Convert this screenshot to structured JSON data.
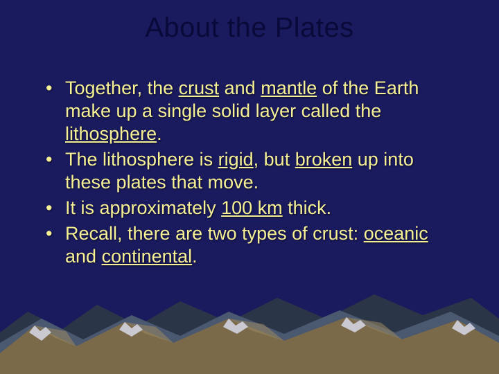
{
  "title": {
    "text": "About the Plates",
    "color": "#0a0a3a",
    "fontsize": 40
  },
  "body_text_color": "#f5f096",
  "body_fontsize": 27,
  "background_color": "#1a1a5e",
  "bullets": [
    {
      "segments": [
        {
          "t": "Together, the "
        },
        {
          "t": "crust",
          "u": true
        },
        {
          "t": " and "
        },
        {
          "t": "mantle",
          "u": true
        },
        {
          "t": " of the Earth make up a single solid layer called the "
        },
        {
          "t": "lithosphere",
          "u": true
        },
        {
          "t": "."
        }
      ]
    },
    {
      "segments": [
        {
          "t": "The lithosphere is "
        },
        {
          "t": "rigid",
          "u": true
        },
        {
          "t": ", but "
        },
        {
          "t": "broken",
          "u": true
        },
        {
          "t": " up into these plates that move."
        }
      ]
    },
    {
      "segments": [
        {
          "t": "It is approximately "
        },
        {
          "t": "100 km",
          "u": true
        },
        {
          "t": " thick."
        }
      ]
    },
    {
      "segments": [
        {
          "t": "Recall, there are two types of crust: "
        },
        {
          "t": "oceanic",
          "u": true
        },
        {
          "t": " and "
        },
        {
          "t": "continental",
          "u": true
        },
        {
          "t": "."
        }
      ]
    }
  ],
  "mountains": {
    "back_fill": "#2a3548",
    "mid_fill": "#4a5870",
    "front_fill": "#7a6a4a",
    "front_highlight": "#9a8860",
    "snow_fill": "#d8d8e8"
  }
}
